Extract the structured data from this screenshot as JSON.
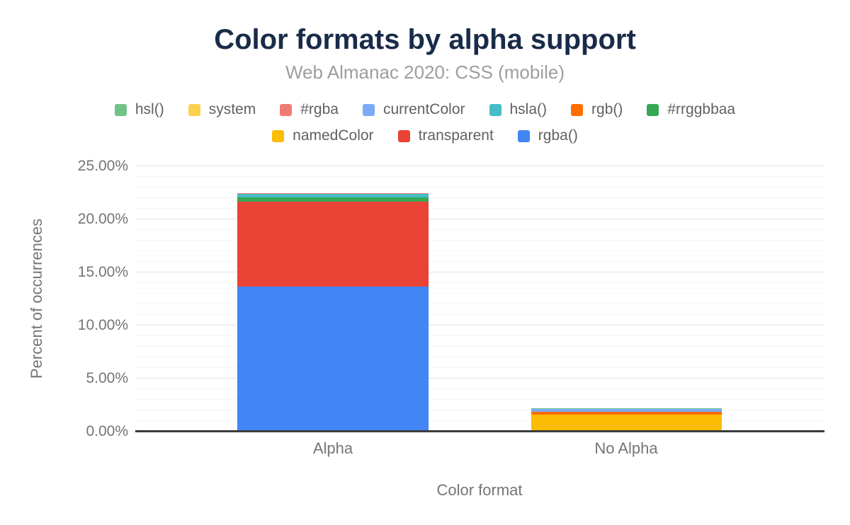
{
  "figure": {
    "title": "Color formats by alpha support",
    "subtitle": "Web Almanac 2020: CSS (mobile)"
  },
  "chart_data": {
    "type": "bar",
    "stacked": true,
    "title": "Color formats by alpha support",
    "subtitle": "Web Almanac 2020: CSS (mobile)",
    "xlabel": "Color format",
    "ylabel": "Percent of occurrences",
    "categories": [
      "Alpha",
      "No Alpha"
    ],
    "series": [
      {
        "name": "rgba()",
        "color": "#4285F4",
        "values": [
          13.7,
          0
        ]
      },
      {
        "name": "transparent",
        "color": "#EA4335",
        "values": [
          8.0,
          0
        ]
      },
      {
        "name": "namedColor",
        "color": "#FBBC04",
        "values": [
          0,
          1.62
        ]
      },
      {
        "name": "#rrggbbaa",
        "color": "#34A853",
        "values": [
          0.36,
          0
        ]
      },
      {
        "name": "rgb()",
        "color": "#FF6D01",
        "values": [
          0,
          0.28
        ]
      },
      {
        "name": "hsla()",
        "color": "#46BDC6",
        "values": [
          0.38,
          0
        ]
      },
      {
        "name": "currentColor",
        "color": "#7BAAF7",
        "values": [
          0,
          0.28
        ]
      },
      {
        "name": "#rgba",
        "color": "#F07B72",
        "values": [
          0.02,
          0
        ]
      },
      {
        "name": "system",
        "color": "#FCD04F",
        "values": [
          0,
          0.01
        ]
      },
      {
        "name": "hsl()",
        "color": "#71C287",
        "values": [
          0,
          0.01
        ]
      }
    ],
    "legend_rows": [
      [
        "hsl()",
        "system",
        "#rgba",
        "currentColor",
        "hsla()",
        "rgb()",
        "#rrggbbaa"
      ],
      [
        "namedColor",
        "transparent",
        "rgba()"
      ]
    ],
    "legend_position": "top",
    "grid": true,
    "ylim": [
      0,
      25
    ],
    "y_major_step": 5,
    "y_minor_step": 1,
    "y_ticks": [
      {
        "value": 0,
        "label": "0.00%"
      },
      {
        "value": 5,
        "label": "5.00%"
      },
      {
        "value": 10,
        "label": "10.00%"
      },
      {
        "value": 15,
        "label": "15.00%"
      },
      {
        "value": 20,
        "label": "20.00%"
      },
      {
        "value": 25,
        "label": "25.00%"
      }
    ]
  },
  "colors": {
    "background": "#ffffff",
    "title_text": "#1a2b49",
    "subtitle_text": "#9e9e9e",
    "axis_text": "#757575",
    "legend_text": "#616161",
    "axis_line": "#3c3c3c",
    "grid_major": "#e2e2e2",
    "grid_minor": "#f5f5f5"
  }
}
